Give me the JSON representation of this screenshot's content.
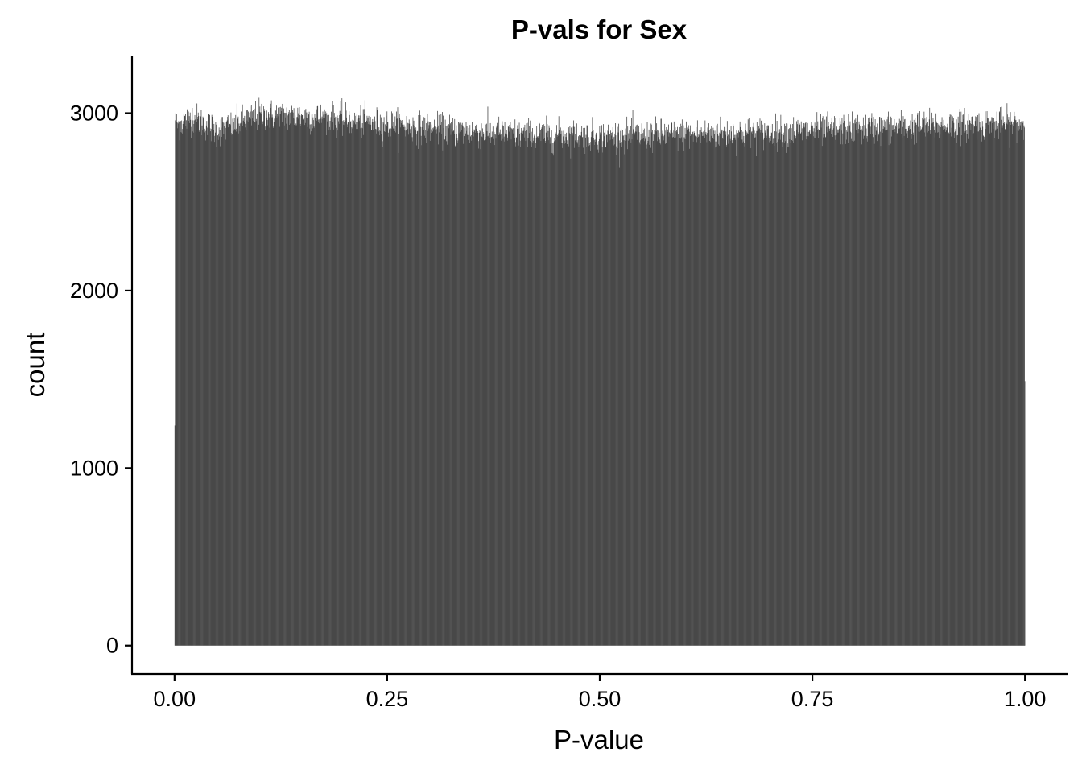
{
  "chart_data": {
    "type": "bar",
    "title": "P-vals for Sex",
    "xlabel": "P-value",
    "ylabel": "count",
    "xlim": [
      -0.05,
      1.05
    ],
    "ylim": [
      -160,
      3320
    ],
    "x_ticks": [
      0,
      0.25,
      0.5,
      0.75,
      1
    ],
    "x_tick_labels": [
      "0.00",
      "0.25",
      "0.50",
      "0.75",
      "1.00"
    ],
    "y_ticks": [
      0,
      1000,
      2000,
      3000
    ],
    "y_tick_labels": [
      "0",
      "1000",
      "2000",
      "3000"
    ],
    "bar_color": "#494949",
    "grid": false,
    "series": [
      {
        "x_range": [
          0,
          1
        ],
        "bin_width": 0.0005,
        "bins": 2000,
        "edge_values": {
          "first_bin": 1240,
          "last_bin": 1490
        },
        "profile": {
          "x": [
            0.0,
            0.002,
            0.01,
            0.02,
            0.05,
            0.1,
            0.15,
            0.2,
            0.3,
            0.4,
            0.5,
            0.6,
            0.7,
            0.8,
            0.9,
            0.998
          ],
          "count": [
            3000,
            2930,
            2950,
            2980,
            2900,
            2990,
            2980,
            2960,
            2910,
            2880,
            2870,
            2880,
            2890,
            2910,
            2930,
            2940
          ]
        },
        "fluctuation_sd": 45
      }
    ]
  }
}
